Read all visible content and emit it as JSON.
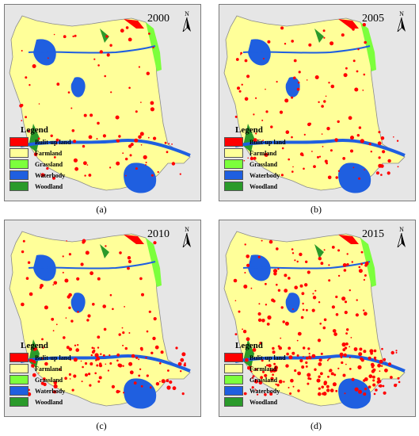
{
  "legend": {
    "title": "Legend",
    "items": [
      {
        "label": "Bulit-up land",
        "color": "#ff0000"
      },
      {
        "label": "Farmland",
        "color": "#ffff99"
      },
      {
        "label": "Grassland",
        "color": "#7cff3c"
      },
      {
        "label": "Waterbody",
        "color": "#1f5fe0"
      },
      {
        "label": "Woodland",
        "color": "#2a9a2a"
      }
    ]
  },
  "north_label": "N",
  "panels": [
    {
      "year": "2000",
      "caption": "(a)",
      "builtup_level": 0.2
    },
    {
      "year": "2005",
      "caption": "(b)",
      "builtup_level": 0.3
    },
    {
      "year": "2010",
      "caption": "(c)",
      "builtup_level": 0.5
    },
    {
      "year": "2015",
      "caption": "(d)",
      "builtup_level": 0.9
    }
  ]
}
